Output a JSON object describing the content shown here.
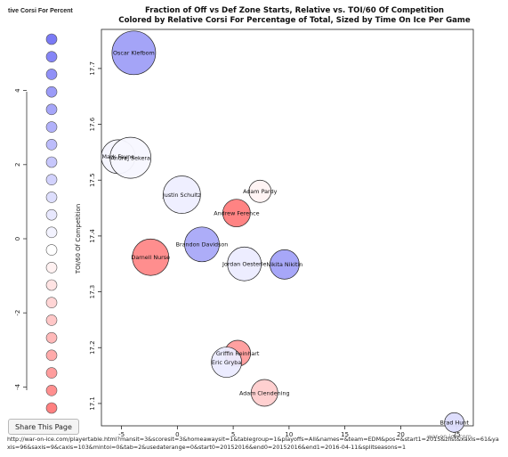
{
  "legend": {
    "title": "tive Corsi For Percent",
    "scale_ticks": [
      {
        "label": "4",
        "value": 4
      },
      {
        "label": "2",
        "value": 2
      },
      {
        "label": "0",
        "value": 0
      },
      {
        "label": "-2",
        "value": -2
      },
      {
        "label": "-4",
        "value": -4
      }
    ],
    "swatch_colors": [
      "#7a7af5",
      "#8585f6",
      "#9090f7",
      "#9b9bf8",
      "#a6a6f9",
      "#b1b1fa",
      "#bcbcfb",
      "#c7c7fc",
      "#d2d2fd",
      "#dddefd",
      "#e8e8fe",
      "#f3f3ff",
      "#ffffff",
      "#fff1f1",
      "#ffe3e3",
      "#ffd5d5",
      "#ffc7c7",
      "#ffb9b9",
      "#ffabab",
      "#ff9d9d",
      "#ff8f8f",
      "#ff8080"
    ]
  },
  "share_button": {
    "label": "Share This Page"
  },
  "url_text": "http://war-on-ice.com/playertable.html?mansit=3&scoresit=3&homeawaysit=1&tablegroup=1&playoffs=All&names=&team=EDM&pos=&start1=2015&zlist&xaxis=61&yaxis=96&saxis=9&caxis=103&mintoi=0&tab=2&usedaterange=0&start0=20152016&end0=20152016&end1=2016-04-11&splitseasons=1",
  "watermark": "war-on-ice.com",
  "chart_data": {
    "type": "scatter",
    "title": "Fraction of Off vs Def Zone Starts, Relative vs. TOI/60 Of Competition",
    "subtitle": "Colored by Relative Corsi For Percentage of Total, Sized by Time On Ice Per Game",
    "xlabel": "",
    "ylabel": "TOI/60 Of Competition",
    "xlim": [
      -6.8,
      26.5
    ],
    "ylim": [
      17.06,
      17.77
    ],
    "x_ticks": [
      {
        "label": "-5",
        "value": -5
      },
      {
        "label": "0",
        "value": 0
      },
      {
        "label": "5",
        "value": 5
      },
      {
        "label": "10",
        "value": 10
      },
      {
        "label": "15",
        "value": 15
      },
      {
        "label": "20",
        "value": 20
      },
      {
        "label": "25",
        "value": 25
      }
    ],
    "y_ticks": [
      {
        "label": "17.1",
        "value": 17.1
      },
      {
        "label": "17.2",
        "value": 17.2
      },
      {
        "label": "17.3",
        "value": 17.3
      },
      {
        "label": "17.4",
        "value": 17.4
      },
      {
        "label": "17.5",
        "value": 17.5
      },
      {
        "label": "17.6",
        "value": 17.6
      },
      {
        "label": "17.7",
        "value": 17.7
      }
    ],
    "size_variable": "Time On Ice Per Game",
    "color_variable": "Relative Corsi For Percentage",
    "points": [
      {
        "name": "Oscar Klefbom",
        "x": -3.9,
        "y": 17.728,
        "size": 24.5,
        "color": "#9f9ff7"
      },
      {
        "name": "Mark Fayne",
        "x": -5.3,
        "y": 17.542,
        "size": 19.0,
        "color": "#f5f5ff"
      },
      {
        "name": "Andrej Sekera",
        "x": -4.2,
        "y": 17.54,
        "size": 23.0,
        "color": "#f7f7ff"
      },
      {
        "name": "Justin Schultz",
        "x": 0.4,
        "y": 17.474,
        "size": 21.0,
        "color": "#eeeeff"
      },
      {
        "name": "Adam Pardy",
        "x": 7.4,
        "y": 17.48,
        "size": 12.5,
        "color": "#fff3f3"
      },
      {
        "name": "Andrew Ference",
        "x": 5.3,
        "y": 17.441,
        "size": 15.5,
        "color": "#ff7c7c"
      },
      {
        "name": "Brandon Davidson",
        "x": 2.2,
        "y": 17.385,
        "size": 19.5,
        "color": "#a9a9f8"
      },
      {
        "name": "Darnell Nurse",
        "x": -2.4,
        "y": 17.362,
        "size": 20.5,
        "color": "#ff8888"
      },
      {
        "name": "Jordan Oesterle",
        "x": 6.0,
        "y": 17.35,
        "size": 19.0,
        "color": "#ececff"
      },
      {
        "name": "Nikita Nikitin",
        "x": 9.6,
        "y": 17.349,
        "size": 16.5,
        "color": "#a2a2f8"
      },
      {
        "name": "Griffin Reinhart",
        "x": 5.4,
        "y": 17.19,
        "size": 14.5,
        "color": "#ff9b9b"
      },
      {
        "name": "Eric Gryba",
        "x": 4.4,
        "y": 17.174,
        "size": 17.0,
        "color": "#ebebff"
      },
      {
        "name": "Adam Clendening",
        "x": 7.8,
        "y": 17.119,
        "size": 15.0,
        "color": "#ffcdcd"
      },
      {
        "name": "Brad Hunt",
        "x": 24.8,
        "y": 17.066,
        "size": 11.0,
        "color": "#dcdcfd"
      }
    ]
  }
}
